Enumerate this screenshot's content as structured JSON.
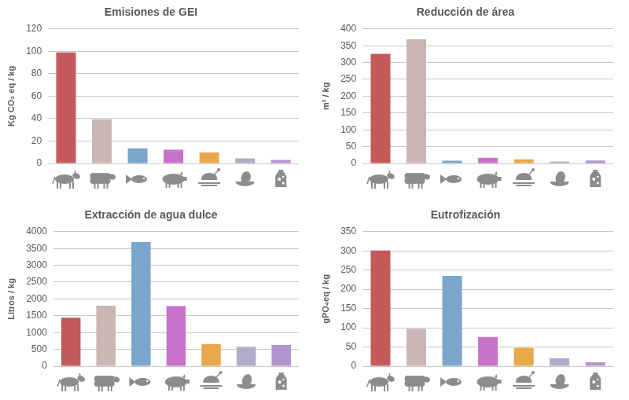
{
  "chart_data": [
    {
      "type": "bar",
      "title": "Emisiones de GEI",
      "y_label": "Kg CO₂ eq / kg",
      "categories": [
        null,
        null,
        null,
        null,
        null,
        null,
        null
      ],
      "values": [
        99,
        39.5,
        13.5,
        12.3,
        9.9,
        4.5,
        3.2
      ],
      "colors": [
        "#c55a5a",
        "#ccb5b5",
        "#7ba6cc",
        "#c972c9",
        "#e8a94a",
        "#b3acc9",
        "#b494d0"
      ],
      "ylim": [
        0,
        120
      ],
      "yticks": [
        0,
        20,
        40,
        60,
        80,
        100,
        120
      ],
      "grid": true,
      "tick_labels": "y"
    },
    {
      "type": "bar",
      "title": "Reducción de área",
      "y_label": "m² / kg",
      "categories": [
        null,
        null,
        null,
        null,
        null,
        null,
        null
      ],
      "values": [
        326,
        369,
        8,
        17,
        12,
        6,
        9
      ],
      "colors": [
        "#c55a5a",
        "#ccb5b5",
        "#7ba6cc",
        "#c972c9",
        "#e8a94a",
        "#b3acc9",
        "#b494d0"
      ],
      "ylim": [
        0,
        400
      ],
      "yticks": [
        0,
        50,
        100,
        150,
        200,
        250,
        300,
        350,
        400
      ],
      "grid": true,
      "tick_labels": "y"
    },
    {
      "type": "bar",
      "title": "Extracción de agua dulce",
      "y_label": "Litros / kg",
      "categories": [
        null,
        null,
        null,
        null,
        null,
        null,
        null
      ],
      "values": [
        1440,
        1800,
        3690,
        1790,
        660,
        580,
        630
      ],
      "colors": [
        "#c55a5a",
        "#ccb5b5",
        "#7ba6cc",
        "#c972c9",
        "#e8a94a",
        "#b3acc9",
        "#b494d0"
      ],
      "ylim": [
        0,
        4000
      ],
      "yticks": [
        0,
        500,
        1000,
        1500,
        2000,
        2500,
        3000,
        3500,
        4000
      ],
      "grid": true,
      "tick_labels": "y"
    },
    {
      "type": "bar",
      "title": "Eutrofización",
      "y_label": "gPO₄eq / kg",
      "categories": [
        null,
        null,
        null,
        null,
        null,
        null,
        null
      ],
      "values": [
        301,
        97,
        235,
        76,
        48,
        21,
        10
      ],
      "colors": [
        "#c55a5a",
        "#ccb5b5",
        "#7ba6cc",
        "#c972c9",
        "#e8a94a",
        "#b3acc9",
        "#b494d0"
      ],
      "ylim": [
        0,
        350
      ],
      "yticks": [
        0,
        50,
        100,
        150,
        200,
        250,
        300,
        350
      ],
      "grid": true,
      "tick_labels": "y"
    }
  ]
}
